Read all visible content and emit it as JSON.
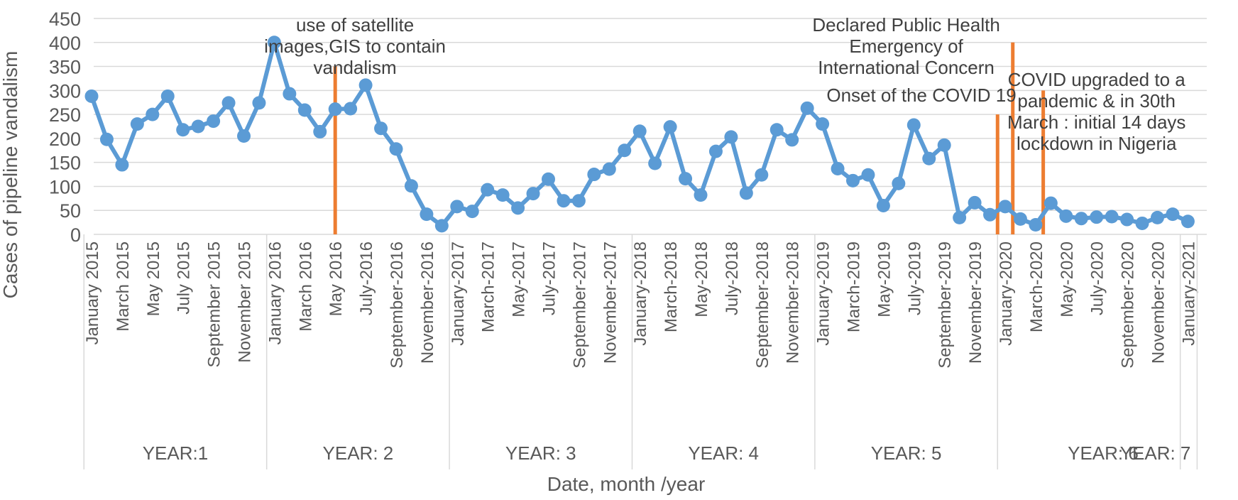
{
  "chart_data": {
    "type": "line",
    "xlabel": "Date, month /year",
    "ylabel": "Cases of pipeline vandalism",
    "ylim": [
      0,
      450
    ],
    "yticks": [
      0,
      50,
      100,
      150,
      200,
      250,
      300,
      350,
      400,
      450
    ],
    "grid": "horizontal",
    "line_color": "#5B9BD5",
    "marker_line_color": "#ED7D31",
    "axis_text_color": "#595959",
    "x": [
      "Jan-2015",
      "Feb-2015",
      "Mar-2015",
      "Apr-2015",
      "May-2015",
      "Jun-2015",
      "Jul-2015",
      "Aug-2015",
      "Sep-2015",
      "Oct-2015",
      "Nov-2015",
      "Dec-2015",
      "Jan-2016",
      "Feb-2016",
      "Mar-2016",
      "Apr-2016",
      "May-2016",
      "Jun-2016",
      "Jul-2016",
      "Aug-2016",
      "Sep-2016",
      "Oct-2016",
      "Nov-2016",
      "Dec-2016",
      "Jan-2017",
      "Feb-2017",
      "Mar-2017",
      "Apr-2017",
      "May-2017",
      "Jun-2017",
      "Jul-2017",
      "Aug-2017",
      "Sep-2017",
      "Oct-2017",
      "Nov-2017",
      "Dec-2017",
      "Jan-2018",
      "Feb-2018",
      "Mar-2018",
      "Apr-2018",
      "May-2018",
      "Jun-2018",
      "Jul-2018",
      "Aug-2018",
      "Sep-2018",
      "Oct-2018",
      "Nov-2018",
      "Dec-2018",
      "Jan-2019",
      "Feb-2019",
      "Mar-2019",
      "Apr-2019",
      "May-2019",
      "Jun-2019",
      "Jul-2019",
      "Aug-2019",
      "Sep-2019",
      "Oct-2019",
      "Nov-2019",
      "Dec-2019",
      "Jan-2020",
      "Feb-2020",
      "Mar-2020",
      "Apr-2020",
      "May-2020",
      "Jun-2020",
      "Jul-2020",
      "Aug-2020",
      "Sep-2020",
      "Oct-2020",
      "Nov-2020",
      "Dec-2020",
      "Jan-2021"
    ],
    "values": [
      288,
      198,
      145,
      230,
      250,
      288,
      218,
      225,
      236,
      274,
      205,
      274,
      400,
      293,
      259,
      214,
      261,
      262,
      311,
      221,
      178,
      101,
      42,
      18,
      58,
      48,
      93,
      82,
      55,
      85,
      115,
      70,
      70,
      125,
      136,
      175,
      215,
      148,
      224,
      116,
      82,
      173,
      203,
      86,
      124,
      218,
      197,
      263,
      230,
      137,
      112,
      124,
      60,
      106,
      228,
      158,
      186,
      35,
      66,
      41,
      58,
      32,
      20,
      65,
      38,
      33,
      36,
      37,
      31,
      23,
      35,
      42,
      27
    ],
    "tick_labels": [
      {
        "i": 0,
        "text": "January 2015"
      },
      {
        "i": 2,
        "text": "March 2015"
      },
      {
        "i": 4,
        "text": "May 2015"
      },
      {
        "i": 6,
        "text": "July 2015"
      },
      {
        "i": 8,
        "text": "September 2015"
      },
      {
        "i": 10,
        "text": "November 2015"
      },
      {
        "i": 12,
        "text": "January 2016"
      },
      {
        "i": 14,
        "text": "March 2016"
      },
      {
        "i": 16,
        "text": "May 2016"
      },
      {
        "i": 18,
        "text": "July-2016"
      },
      {
        "i": 20,
        "text": "September-2016"
      },
      {
        "i": 22,
        "text": "November-2016"
      },
      {
        "i": 24,
        "text": "January-2017"
      },
      {
        "i": 26,
        "text": "March-2017"
      },
      {
        "i": 28,
        "text": "May-2017"
      },
      {
        "i": 30,
        "text": "July-2017"
      },
      {
        "i": 32,
        "text": "September-2017"
      },
      {
        "i": 34,
        "text": "November-2017"
      },
      {
        "i": 36,
        "text": "January-2018"
      },
      {
        "i": 38,
        "text": "March-2018"
      },
      {
        "i": 40,
        "text": "May-2018"
      },
      {
        "i": 42,
        "text": "July-2018"
      },
      {
        "i": 44,
        "text": "September-2018"
      },
      {
        "i": 46,
        "text": "November-2018"
      },
      {
        "i": 48,
        "text": "January-2019"
      },
      {
        "i": 50,
        "text": "March-2019"
      },
      {
        "i": 52,
        "text": "May-2019"
      },
      {
        "i": 54,
        "text": "July-2019"
      },
      {
        "i": 56,
        "text": "September-2019"
      },
      {
        "i": 58,
        "text": "November-2019"
      },
      {
        "i": 60,
        "text": "January-2020"
      },
      {
        "i": 62,
        "text": "March-2020"
      },
      {
        "i": 64,
        "text": "May-2020"
      },
      {
        "i": 66,
        "text": "July-2020"
      },
      {
        "i": 68,
        "text": "September-2020"
      },
      {
        "i": 70,
        "text": "November-2020"
      },
      {
        "i": 72,
        "text": "January-2021"
      }
    ],
    "year_groups": [
      {
        "label": "YEAR:1",
        "start": 0,
        "end": 11
      },
      {
        "label": "YEAR: 2",
        "start": 12,
        "end": 23
      },
      {
        "label": "YEAR: 3",
        "start": 24,
        "end": 35
      },
      {
        "label": "YEAR: 4",
        "start": 36,
        "end": 47
      },
      {
        "label": "YEAR: 5",
        "start": 48,
        "end": 59
      },
      {
        "label": "YEAR: 6",
        "start": 60,
        "end": 71
      },
      {
        "label": "YEAR: 7",
        "start": 72,
        "end": 72
      }
    ],
    "event_markers": [
      {
        "x": 16.0,
        "top": 350
      },
      {
        "x": 59.5,
        "top": 250
      },
      {
        "x": 60.5,
        "top": 400
      },
      {
        "x": 62.5,
        "top": 300
      }
    ],
    "annotations": [
      {
        "lines": [
          "use of satellite",
          "images,GIS to contain",
          "vandalism"
        ],
        "x": 17.3,
        "y": 459
      },
      {
        "lines": [
          "Declared Public Health",
          "Emergency of",
          "International Concern"
        ],
        "x": 53.5,
        "y": 459
      },
      {
        "lines": [
          "Onset of the COVID 19"
        ],
        "x": 54.5,
        "y": 312
      },
      {
        "lines": [
          "COVID upgraded to a",
          "pandemic  & in 30th",
          "March : initial  14 days",
          "lockdown in Nigeria"
        ],
        "x": 66.0,
        "y": 345
      }
    ]
  }
}
